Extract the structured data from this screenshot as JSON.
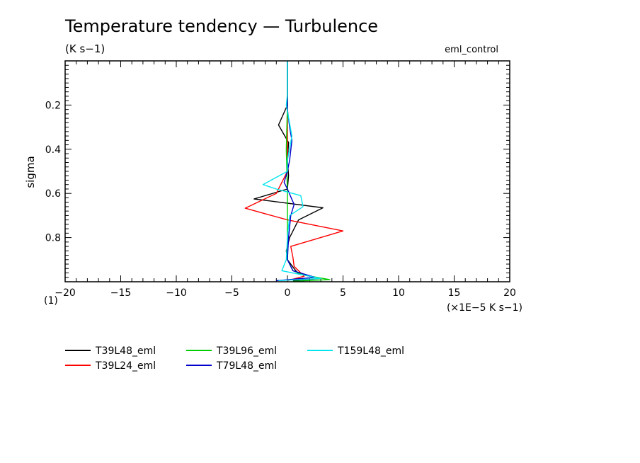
{
  "chart_data": {
    "type": "line",
    "title": "Temperature tendency — Turbulence",
    "subtitle": "(K s−1)",
    "run_label": "eml_control",
    "ylabel": "sigma",
    "x_unit_label": "(×1E−5 K s−1)",
    "x_scale_label": "(1)",
    "xlim": [
      -20,
      20
    ],
    "ylim": [
      0.0,
      1.0
    ],
    "y_inverted": true,
    "x_ticks": [
      {
        "value": -20,
        "label": "−20"
      },
      {
        "value": -15,
        "label": "−15"
      },
      {
        "value": -10,
        "label": "−10"
      },
      {
        "value": -5,
        "label": "−5"
      },
      {
        "value": 0,
        "label": "0"
      },
      {
        "value": 5,
        "label": "5"
      },
      {
        "value": 10,
        "label": "10"
      },
      {
        "value": 15,
        "label": "15"
      },
      {
        "value": 20,
        "label": "20"
      }
    ],
    "y_ticks": [
      {
        "value": 0.2,
        "label": "0.2"
      },
      {
        "value": 0.4,
        "label": "0.4"
      },
      {
        "value": 0.6,
        "label": "0.6"
      },
      {
        "value": 0.8,
        "label": "0.8"
      }
    ],
    "legend_position": "bottom",
    "series": [
      {
        "name": "T39L48_eml",
        "color": "#000000",
        "points": [
          [
            0,
            0.0
          ],
          [
            0,
            0.15
          ],
          [
            0,
            0.2
          ],
          [
            -0.8,
            0.29
          ],
          [
            0.1,
            0.37
          ],
          [
            0,
            0.45
          ],
          [
            0.1,
            0.52
          ],
          [
            0,
            0.58
          ],
          [
            -3,
            0.625
          ],
          [
            3.2,
            0.665
          ],
          [
            1,
            0.72
          ],
          [
            0.2,
            0.8
          ],
          [
            -0.1,
            0.86
          ],
          [
            0,
            0.9
          ],
          [
            0.6,
            0.94
          ],
          [
            1,
            0.965
          ],
          [
            3,
            0.985
          ],
          [
            0.5,
            0.995
          ]
        ]
      },
      {
        "name": "T39L24_eml",
        "color": "#ff0000",
        "points": [
          [
            0,
            0.0
          ],
          [
            0,
            0.5
          ],
          [
            -0.5,
            0.55
          ],
          [
            -1,
            0.6
          ],
          [
            -3.8,
            0.667
          ],
          [
            0,
            0.72
          ],
          [
            5,
            0.77
          ],
          [
            0.3,
            0.84
          ],
          [
            0.5,
            0.89
          ],
          [
            0.6,
            0.93
          ],
          [
            1.5,
            0.975
          ],
          [
            0,
            0.995
          ]
        ]
      },
      {
        "name": "T39L96_eml",
        "color": "#00cc00",
        "points": [
          [
            0,
            0.0
          ],
          [
            0,
            0.2
          ],
          [
            -0.1,
            0.4
          ],
          [
            0,
            0.6
          ],
          [
            0,
            0.8
          ],
          [
            0,
            0.9
          ],
          [
            0.5,
            0.95
          ],
          [
            1.5,
            0.97
          ],
          [
            3.8,
            0.99
          ],
          [
            0.5,
            0.998
          ]
        ]
      },
      {
        "name": "T79L48_eml",
        "color": "#0000cc",
        "points": [
          [
            0,
            0.0
          ],
          [
            0,
            0.15
          ],
          [
            0,
            0.22
          ],
          [
            0.2,
            0.3
          ],
          [
            0.4,
            0.36
          ],
          [
            0.2,
            0.45
          ],
          [
            0,
            0.5
          ],
          [
            -0.3,
            0.55
          ],
          [
            0,
            0.58
          ],
          [
            0.6,
            0.65
          ],
          [
            0.3,
            0.7
          ],
          [
            0.1,
            0.8
          ],
          [
            0,
            0.9
          ],
          [
            0.5,
            0.95
          ],
          [
            2.5,
            0.98
          ],
          [
            -1,
            0.995
          ]
        ]
      },
      {
        "name": "T159L48_eml",
        "color": "#00e5ee",
        "points": [
          [
            0,
            0.0
          ],
          [
            0,
            0.15
          ],
          [
            -0.1,
            0.2
          ],
          [
            0.4,
            0.34
          ],
          [
            0,
            0.45
          ],
          [
            0,
            0.5
          ],
          [
            -2.2,
            0.56
          ],
          [
            -1,
            0.58
          ],
          [
            1.2,
            0.61
          ],
          [
            1.4,
            0.66
          ],
          [
            0.2,
            0.7
          ],
          [
            0,
            0.8
          ],
          [
            -0.1,
            0.9
          ],
          [
            -0.5,
            0.95
          ],
          [
            3,
            0.985
          ],
          [
            -0.8,
            0.995
          ]
        ]
      }
    ]
  }
}
